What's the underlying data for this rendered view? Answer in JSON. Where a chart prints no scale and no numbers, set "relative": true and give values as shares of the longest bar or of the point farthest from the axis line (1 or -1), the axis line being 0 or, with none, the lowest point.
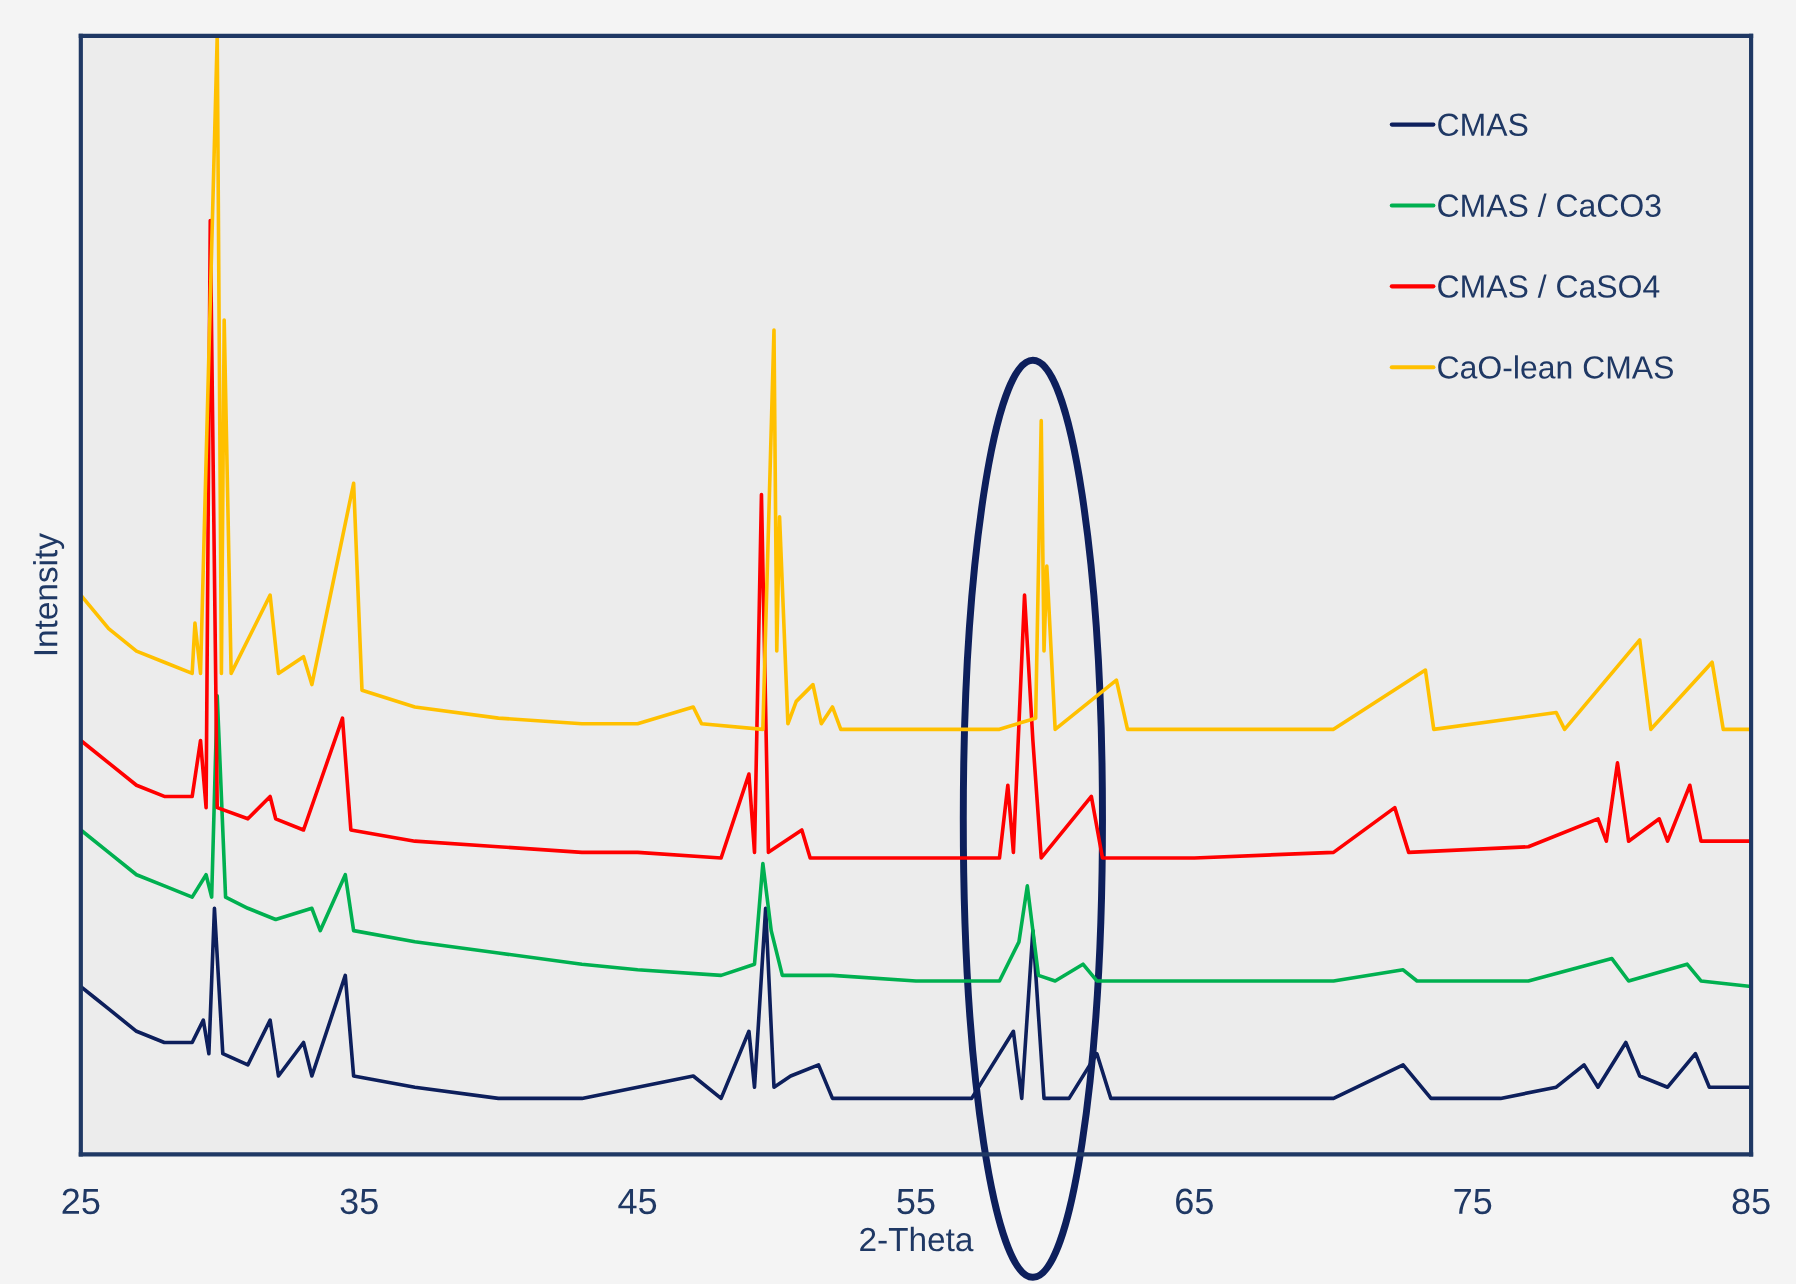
{
  "chart_data": {
    "type": "line",
    "relative": true,
    "xlabel": "2-Theta",
    "ylabel": "Intensity",
    "xlim": [
      25,
      85
    ],
    "xticks": [
      25,
      35,
      45,
      55,
      65,
      75,
      85
    ],
    "grid": false,
    "legend": "top right",
    "tick_labels": "x",
    "series": [
      {
        "name": "CMAS",
        "color": "#0d1f5c",
        "x": [
          25,
          25.5,
          26,
          27,
          28,
          29,
          29.4,
          29.6,
          29.8,
          30.1,
          31,
          31.8,
          32.1,
          33,
          33.3,
          34.5,
          34.8,
          37,
          40,
          43,
          45,
          47,
          48,
          49,
          49.2,
          49.6,
          49.9,
          50.5,
          51.5,
          52,
          55,
          57,
          58.5,
          58.8,
          59.2,
          59.6,
          60.5,
          61.5,
          62,
          65,
          68,
          70,
          72.5,
          73.5,
          76,
          78,
          79,
          79.5,
          80.5,
          81,
          82,
          83,
          83.5,
          85
        ],
        "values": [
          0.15,
          0.14,
          0.13,
          0.11,
          0.1,
          0.1,
          0.12,
          0.09,
          0.22,
          0.09,
          0.08,
          0.12,
          0.07,
          0.1,
          0.07,
          0.16,
          0.07,
          0.06,
          0.05,
          0.05,
          0.06,
          0.07,
          0.05,
          0.11,
          0.06,
          0.22,
          0.06,
          0.07,
          0.08,
          0.05,
          0.05,
          0.05,
          0.11,
          0.05,
          0.2,
          0.05,
          0.05,
          0.09,
          0.05,
          0.05,
          0.05,
          0.05,
          0.08,
          0.05,
          0.05,
          0.06,
          0.08,
          0.06,
          0.1,
          0.07,
          0.06,
          0.09,
          0.06,
          0.06
        ]
      },
      {
        "name": "CMAS / CaCO3",
        "color": "#00b050",
        "x": [
          25,
          26,
          27,
          28,
          29,
          29.5,
          29.7,
          29.9,
          30.2,
          31,
          32,
          33.3,
          33.6,
          34.5,
          34.8,
          37,
          40,
          43,
          45,
          48,
          49.2,
          49.5,
          49.8,
          50.2,
          52,
          55,
          58,
          58.7,
          59,
          59.4,
          60,
          61,
          61.5,
          65,
          70,
          72.5,
          73,
          77,
          80,
          80.6,
          82.7,
          83.2,
          85
        ],
        "values": [
          0.29,
          0.27,
          0.25,
          0.24,
          0.23,
          0.25,
          0.23,
          0.41,
          0.23,
          0.22,
          0.21,
          0.22,
          0.2,
          0.25,
          0.2,
          0.19,
          0.18,
          0.17,
          0.165,
          0.16,
          0.17,
          0.26,
          0.2,
          0.16,
          0.16,
          0.155,
          0.155,
          0.19,
          0.24,
          0.16,
          0.155,
          0.17,
          0.155,
          0.155,
          0.155,
          0.165,
          0.155,
          0.155,
          0.175,
          0.155,
          0.17,
          0.155,
          0.15
        ]
      },
      {
        "name": "CMAS / CaSO4",
        "color": "#ff0000",
        "x": [
          25,
          26,
          27,
          28,
          29,
          29.3,
          29.5,
          29.65,
          29.9,
          31,
          31.8,
          32,
          33,
          34.4,
          34.7,
          37,
          40,
          43,
          45,
          48,
          49,
          49.2,
          49.45,
          49.7,
          50.9,
          51.2,
          55,
          58,
          58.3,
          58.5,
          58.9,
          59.2,
          59.5,
          61.3,
          61.7,
          65,
          70,
          72.2,
          72.7,
          77,
          79.5,
          79.8,
          80.2,
          80.6,
          81.7,
          82,
          82.8,
          83.2,
          85
        ],
        "values": [
          0.37,
          0.35,
          0.33,
          0.32,
          0.32,
          0.37,
          0.31,
          0.835,
          0.31,
          0.3,
          0.32,
          0.3,
          0.29,
          0.39,
          0.29,
          0.28,
          0.275,
          0.27,
          0.27,
          0.265,
          0.34,
          0.27,
          0.59,
          0.27,
          0.29,
          0.265,
          0.265,
          0.265,
          0.33,
          0.27,
          0.5,
          0.37,
          0.265,
          0.32,
          0.265,
          0.265,
          0.27,
          0.31,
          0.27,
          0.275,
          0.3,
          0.28,
          0.35,
          0.28,
          0.3,
          0.28,
          0.33,
          0.28,
          0.28
        ]
      },
      {
        "name": "CaO-lean CMAS",
        "color": "#ffc000",
        "x": [
          25,
          26,
          27,
          28,
          29,
          29.1,
          29.3,
          29.9,
          30.05,
          30.15,
          30.4,
          31.8,
          32.1,
          33,
          33.3,
          34.8,
          35.1,
          37,
          40,
          43,
          45,
          47,
          47.3,
          49.5,
          49.9,
          50.0,
          50.1,
          50.4,
          50.7,
          51.3,
          51.6,
          52,
          52.3,
          55,
          58,
          59.3,
          59.5,
          59.6,
          59.7,
          60,
          62.2,
          62.6,
          66,
          70,
          73.3,
          73.6,
          78,
          78.3,
          81,
          81.4,
          83.6,
          84,
          85
        ],
        "values": [
          0.5,
          0.47,
          0.45,
          0.44,
          0.43,
          0.475,
          0.43,
          1.0,
          0.43,
          0.746,
          0.43,
          0.5,
          0.43,
          0.445,
          0.42,
          0.6,
          0.415,
          0.4,
          0.39,
          0.385,
          0.385,
          0.4,
          0.385,
          0.38,
          0.737,
          0.45,
          0.57,
          0.385,
          0.405,
          0.42,
          0.385,
          0.4,
          0.38,
          0.38,
          0.38,
          0.39,
          0.656,
          0.45,
          0.526,
          0.38,
          0.424,
          0.38,
          0.38,
          0.38,
          0.433,
          0.38,
          0.395,
          0.38,
          0.46,
          0.38,
          0.44,
          0.38,
          0.38
        ]
      }
    ]
  }
}
